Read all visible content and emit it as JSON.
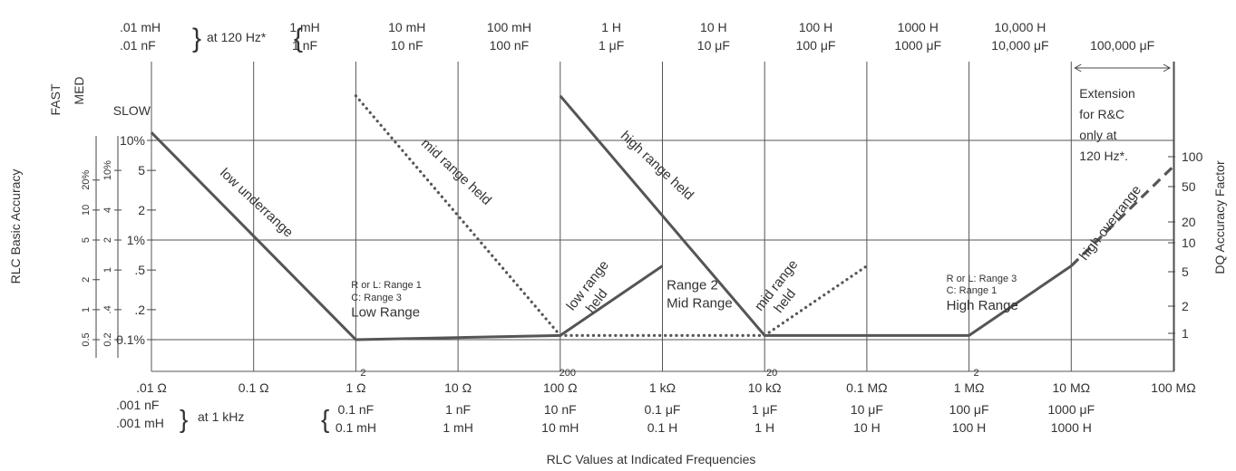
{
  "chart_data": {
    "type": "line",
    "xlabel": "RLC Values at Indicated Frequencies",
    "ylabel": "RLC Basic Accuracy",
    "ylabel_right": "DQ Accuracy Factor",
    "x_scale": "log",
    "y_scale": "log",
    "xlim_ohm": [
      0.01,
      100000000
    ],
    "ylim_percent": [
      0.1,
      10
    ],
    "top_axis": {
      "header_line1": ".01 mH",
      "header_line2": ".01 nF",
      "freq_label": "at 120 Hz*",
      "ticks": [
        {
          "l1": "1 mH",
          "l2": "1 nF"
        },
        {
          "l1": "10 mH",
          "l2": "10 nF"
        },
        {
          "l1": "100 mH",
          "l2": "100 nF"
        },
        {
          "l1": "1 H",
          "l2": "1 μF"
        },
        {
          "l1": "10 H",
          "l2": "10 μF"
        },
        {
          "l1": "100 H",
          "l2": "100 μF"
        },
        {
          "l1": "1000 H",
          "l2": "1000 μF"
        },
        {
          "l1": "10,000 H",
          "l2": "10,000 μF"
        },
        {
          "l1": "",
          "l2": "100,000 μF"
        }
      ]
    },
    "bottom_axis": {
      "ohm_ticks": [
        ".01 Ω",
        "0.1 Ω",
        "1 Ω",
        "10 Ω",
        "100 Ω",
        "1 kΩ",
        "10 kΩ",
        "0.1 MΩ",
        "1 MΩ",
        "10 MΩ",
        "100 MΩ"
      ],
      "superscripts": [
        {
          "x_ohm": 1,
          "text": "2"
        },
        {
          "x_ohm": 100,
          "text": "200"
        },
        {
          "x_ohm": 10000,
          "text": "20"
        },
        {
          "x_ohm": 1000000,
          "text": "2"
        }
      ],
      "row2_lead": ".001 nF",
      "row3_lead": ".001 mH",
      "freq_label": "at 1 kHz",
      "sub_ticks": [
        {
          "x_ohm": 1,
          "l1": "0.1 nF",
          "l2": "0.1 mH"
        },
        {
          "x_ohm": 10,
          "l1": "1 nF",
          "l2": "1 mH"
        },
        {
          "x_ohm": 100,
          "l1": "10 nF",
          "l2": "10 mH"
        },
        {
          "x_ohm": 1000,
          "l1": "0.1 μF",
          "l2": "0.1 H"
        },
        {
          "x_ohm": 10000,
          "l1": "1 μF",
          "l2": "1 H"
        },
        {
          "x_ohm": 100000,
          "l1": "10 μF",
          "l2": "10 H"
        },
        {
          "x_ohm": 1000000,
          "l1": "100 μF",
          "l2": "100 H"
        },
        {
          "x_ohm": 10000000,
          "l1": "1000 μF",
          "l2": "1000 H"
        }
      ]
    },
    "speed_labels": {
      "fast": "FAST",
      "med": "MED",
      "slow": "SLOW"
    },
    "left_ticks_slow": [
      {
        "v": 10,
        "t": "10%"
      },
      {
        "v": 5,
        "t": "5"
      },
      {
        "v": 2,
        "t": "2"
      },
      {
        "v": 1,
        "t": "1%"
      },
      {
        "v": 0.5,
        "t": ".5"
      },
      {
        "v": 0.2,
        "t": ".2"
      },
      {
        "v": 0.1,
        "t": "0.1%"
      }
    ],
    "left_ticks_med": [
      {
        "v": 10,
        "t": "10%"
      },
      {
        "v": 4,
        "t": "4"
      },
      {
        "v": 2,
        "t": "2"
      },
      {
        "v": 1,
        "t": "1"
      },
      {
        "v": 0.4,
        "t": ".4"
      },
      {
        "v": 0.2,
        "t": "0.2"
      }
    ],
    "left_ticks_fast": [
      {
        "v": 20,
        "t": "20%"
      },
      {
        "v": 10,
        "t": "10"
      },
      {
        "v": 5,
        "t": "5"
      },
      {
        "v": 2,
        "t": "2"
      },
      {
        "v": 1,
        "t": "1"
      },
      {
        "v": 0.5,
        "t": "0.5"
      }
    ],
    "right_ticks": [
      "100",
      "50",
      "20",
      "10",
      "5",
      "2",
      "1"
    ],
    "series": [
      {
        "style": "solid",
        "points": [
          [
            0.01,
            12
          ],
          [
            1,
            0.1
          ],
          [
            100,
            0.11
          ]
        ]
      },
      {
        "style": "solid",
        "points": [
          [
            100,
            0.11
          ],
          [
            1000,
            0.55
          ]
        ]
      },
      {
        "style": "dotted",
        "points": [
          [
            1,
            28
          ],
          [
            100,
            0.11
          ]
        ]
      },
      {
        "style": "dotted",
        "points": [
          [
            100,
            0.11
          ],
          [
            10000,
            0.11
          ]
        ]
      },
      {
        "style": "solid",
        "points": [
          [
            100,
            28
          ],
          [
            10000,
            0.11
          ],
          [
            1000000,
            0.11
          ],
          [
            10000000,
            0.55
          ]
        ]
      },
      {
        "style": "dotted",
        "points": [
          [
            10000,
            0.11
          ],
          [
            100000,
            0.55
          ]
        ]
      },
      {
        "style": "dashed",
        "points": [
          [
            10000000,
            0.55
          ],
          [
            100000000,
            5.5
          ]
        ]
      }
    ],
    "annotations": [
      {
        "text": "low underrange",
        "x_ohm": 0.1,
        "y": 2.2,
        "angle": 43
      },
      {
        "text": "mid range held",
        "x_ohm": 9,
        "y": 4.5,
        "angle": 43
      },
      {
        "text": "high range held",
        "x_ohm": 830,
        "y": 5.2,
        "angle": 43
      },
      {
        "text": "low range",
        "x_ohm": 200,
        "y": 0.33,
        "angle": -52
      },
      {
        "text": "held",
        "x_ohm": 245,
        "y": 0.23,
        "angle": -52
      },
      {
        "text": "mid range",
        "x_ohm": 14000,
        "y": 0.33,
        "angle": -52
      },
      {
        "text": "held",
        "x_ohm": 17000,
        "y": 0.23,
        "angle": -52
      },
      {
        "text": "high overrange",
        "x_ohm": 26000000,
        "y": 1.4,
        "angle": -52
      },
      {
        "text": "R or L:  Range 1",
        "x_ohm": 0.9,
        "y": 0.33,
        "size": "sm"
      },
      {
        "text": "C:  Range 3",
        "x_ohm": 0.9,
        "y": 0.245,
        "size": "sm"
      },
      {
        "text": "Low Range",
        "x_ohm": 0.9,
        "y": 0.17,
        "size": "lbl15"
      },
      {
        "text": "Range 2",
        "x_ohm": 1100,
        "y": 0.32,
        "size": "lbl15"
      },
      {
        "text": "Mid Range",
        "x_ohm": 1100,
        "y": 0.21,
        "size": "lbl15"
      },
      {
        "text": "R or L:  Range 3",
        "x_ohm": 600000,
        "y": 0.38,
        "size": "sm"
      },
      {
        "text": "C:  Range 1",
        "x_ohm": 600000,
        "y": 0.29,
        "size": "sm"
      },
      {
        "text": "High Range",
        "x_ohm": 600000,
        "y": 0.2,
        "size": "lbl15"
      }
    ],
    "extension_note": [
      "Extension",
      "for R&C",
      "only at",
      "120 Hz*."
    ]
  }
}
